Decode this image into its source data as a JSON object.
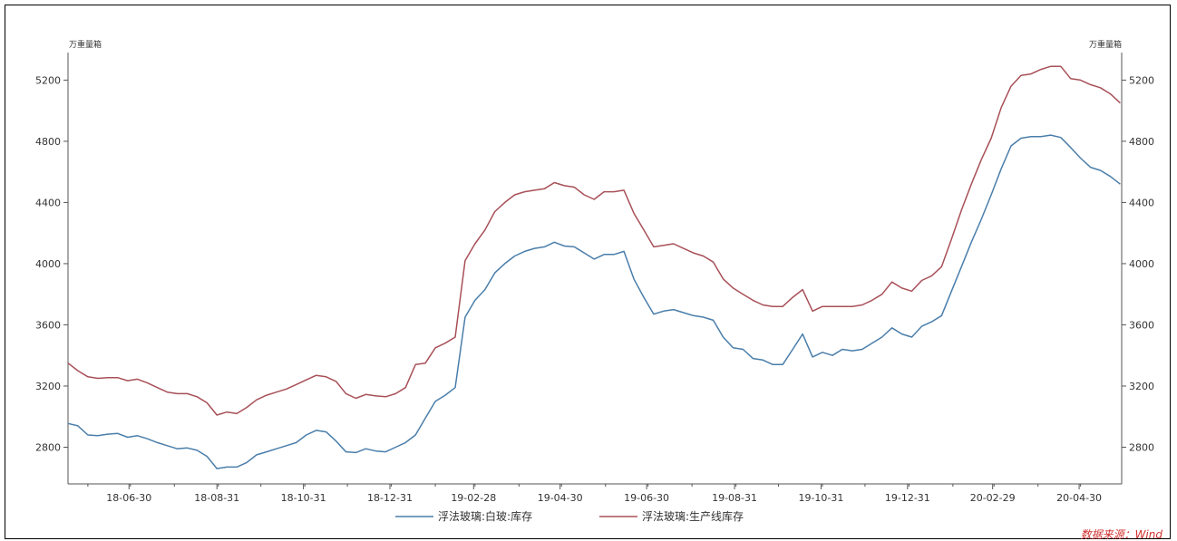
{
  "chart_data": {
    "type": "line",
    "title": "",
    "units": {
      "left": "万重量箱",
      "right": "万重量箱"
    },
    "ylim": [
      2560,
      5380
    ],
    "yticks": [
      2800,
      3200,
      3600,
      4000,
      4400,
      4800,
      5200
    ],
    "xlim": [
      "2018-05-18",
      "2020-05-30"
    ],
    "xticks": [
      {
        "date": "2018-06-30",
        "label": "18-06-30"
      },
      {
        "date": "2018-08-31",
        "label": "18-08-31"
      },
      {
        "date": "2018-10-31",
        "label": "18-10-31"
      },
      {
        "date": "2018-12-31",
        "label": "18-12-31"
      },
      {
        "date": "2019-02-28",
        "label": "19-02-28"
      },
      {
        "date": "2019-04-30",
        "label": "19-04-30"
      },
      {
        "date": "2019-06-30",
        "label": "19-06-30"
      },
      {
        "date": "2019-08-31",
        "label": "19-08-31"
      },
      {
        "date": "2019-10-31",
        "label": "19-10-31"
      },
      {
        "date": "2019-12-31",
        "label": "19-12-31"
      },
      {
        "date": "2020-02-29",
        "label": "20-02-29"
      },
      {
        "date": "2020-04-30",
        "label": "20-04-30"
      }
    ],
    "legend_position": "bottom",
    "grid": false,
    "series": [
      {
        "name": "浮法玻璃:白玻:库存",
        "color": "#4a7eaa",
        "points": [
          [
            "2018-05-18",
            2955
          ],
          [
            "2018-05-25",
            2940
          ],
          [
            "2018-06-01",
            2880
          ],
          [
            "2018-06-08",
            2875
          ],
          [
            "2018-06-15",
            2885
          ],
          [
            "2018-06-22",
            2890
          ],
          [
            "2018-06-29",
            2865
          ],
          [
            "2018-07-06",
            2875
          ],
          [
            "2018-07-13",
            2855
          ],
          [
            "2018-07-20",
            2830
          ],
          [
            "2018-07-27",
            2810
          ],
          [
            "2018-08-03",
            2790
          ],
          [
            "2018-08-10",
            2795
          ],
          [
            "2018-08-17",
            2780
          ],
          [
            "2018-08-24",
            2740
          ],
          [
            "2018-08-31",
            2660
          ],
          [
            "2018-09-07",
            2670
          ],
          [
            "2018-09-14",
            2670
          ],
          [
            "2018-09-21",
            2700
          ],
          [
            "2018-09-28",
            2750
          ],
          [
            "2018-10-05",
            2770
          ],
          [
            "2018-10-12",
            2790
          ],
          [
            "2018-10-19",
            2810
          ],
          [
            "2018-10-26",
            2830
          ],
          [
            "2018-11-02",
            2880
          ],
          [
            "2018-11-09",
            2910
          ],
          [
            "2018-11-16",
            2900
          ],
          [
            "2018-11-23",
            2840
          ],
          [
            "2018-11-30",
            2770
          ],
          [
            "2018-12-07",
            2765
          ],
          [
            "2018-12-14",
            2790
          ],
          [
            "2018-12-21",
            2775
          ],
          [
            "2018-12-28",
            2770
          ],
          [
            "2019-01-04",
            2800
          ],
          [
            "2019-01-11",
            2830
          ],
          [
            "2019-01-18",
            2880
          ],
          [
            "2019-01-25",
            2990
          ],
          [
            "2019-02-01",
            3100
          ],
          [
            "2019-02-08",
            3140
          ],
          [
            "2019-02-15",
            3190
          ],
          [
            "2019-02-22",
            3650
          ],
          [
            "2019-03-01",
            3760
          ],
          [
            "2019-03-08",
            3830
          ],
          [
            "2019-03-15",
            3940
          ],
          [
            "2019-03-22",
            4000
          ],
          [
            "2019-03-29",
            4050
          ],
          [
            "2019-04-05",
            4080
          ],
          [
            "2019-04-12",
            4100
          ],
          [
            "2019-04-19",
            4110
          ],
          [
            "2019-04-26",
            4140
          ],
          [
            "2019-05-03",
            4115
          ],
          [
            "2019-05-10",
            4110
          ],
          [
            "2019-05-17",
            4070
          ],
          [
            "2019-05-24",
            4030
          ],
          [
            "2019-05-31",
            4060
          ],
          [
            "2019-06-07",
            4060
          ],
          [
            "2019-06-14",
            4080
          ],
          [
            "2019-06-21",
            3900
          ],
          [
            "2019-06-28",
            3780
          ],
          [
            "2019-07-05",
            3670
          ],
          [
            "2019-07-12",
            3690
          ],
          [
            "2019-07-19",
            3700
          ],
          [
            "2019-07-26",
            3680
          ],
          [
            "2019-08-02",
            3660
          ],
          [
            "2019-08-09",
            3650
          ],
          [
            "2019-08-16",
            3630
          ],
          [
            "2019-08-23",
            3520
          ],
          [
            "2019-08-30",
            3450
          ],
          [
            "2019-09-06",
            3440
          ],
          [
            "2019-09-13",
            3380
          ],
          [
            "2019-09-20",
            3370
          ],
          [
            "2019-09-27",
            3340
          ],
          [
            "2019-10-04",
            3340
          ],
          [
            "2019-10-11",
            3440
          ],
          [
            "2019-10-18",
            3540
          ],
          [
            "2019-10-25",
            3390
          ],
          [
            "2019-11-01",
            3420
          ],
          [
            "2019-11-08",
            3400
          ],
          [
            "2019-11-15",
            3440
          ],
          [
            "2019-11-22",
            3430
          ],
          [
            "2019-11-29",
            3440
          ],
          [
            "2019-12-06",
            3480
          ],
          [
            "2019-12-13",
            3520
          ],
          [
            "2019-12-20",
            3580
          ],
          [
            "2019-12-27",
            3540
          ],
          [
            "2020-01-03",
            3520
          ],
          [
            "2020-01-10",
            3590
          ],
          [
            "2020-01-17",
            3620
          ],
          [
            "2020-01-24",
            3660
          ],
          [
            "2020-01-31",
            3820
          ],
          [
            "2020-02-07",
            3980
          ],
          [
            "2020-02-14",
            4140
          ],
          [
            "2020-02-21",
            4290
          ],
          [
            "2020-02-28",
            4450
          ],
          [
            "2020-03-06",
            4620
          ],
          [
            "2020-03-13",
            4770
          ],
          [
            "2020-03-20",
            4820
          ],
          [
            "2020-03-27",
            4830
          ],
          [
            "2020-04-03",
            4830
          ],
          [
            "2020-04-10",
            4840
          ],
          [
            "2020-04-17",
            4825
          ],
          [
            "2020-04-24",
            4760
          ],
          [
            "2020-05-01",
            4690
          ],
          [
            "2020-05-08",
            4630
          ],
          [
            "2020-05-15",
            4610
          ],
          [
            "2020-05-22",
            4570
          ],
          [
            "2020-05-29",
            4520
          ]
        ]
      },
      {
        "name": "浮法玻璃:生产线库存",
        "color": "#a85058",
        "points": [
          [
            "2018-05-18",
            3350
          ],
          [
            "2018-05-25",
            3300
          ],
          [
            "2018-06-01",
            3260
          ],
          [
            "2018-06-08",
            3250
          ],
          [
            "2018-06-15",
            3255
          ],
          [
            "2018-06-22",
            3255
          ],
          [
            "2018-06-29",
            3235
          ],
          [
            "2018-07-06",
            3245
          ],
          [
            "2018-07-13",
            3220
          ],
          [
            "2018-07-20",
            3190
          ],
          [
            "2018-07-27",
            3160
          ],
          [
            "2018-08-03",
            3150
          ],
          [
            "2018-08-10",
            3150
          ],
          [
            "2018-08-17",
            3130
          ],
          [
            "2018-08-24",
            3090
          ],
          [
            "2018-08-31",
            3010
          ],
          [
            "2018-09-07",
            3030
          ],
          [
            "2018-09-14",
            3020
          ],
          [
            "2018-09-21",
            3060
          ],
          [
            "2018-09-28",
            3110
          ],
          [
            "2018-10-05",
            3140
          ],
          [
            "2018-10-12",
            3160
          ],
          [
            "2018-10-19",
            3180
          ],
          [
            "2018-10-26",
            3210
          ],
          [
            "2018-11-02",
            3240
          ],
          [
            "2018-11-09",
            3270
          ],
          [
            "2018-11-16",
            3260
          ],
          [
            "2018-11-23",
            3230
          ],
          [
            "2018-11-30",
            3150
          ],
          [
            "2018-12-07",
            3120
          ],
          [
            "2018-12-14",
            3145
          ],
          [
            "2018-12-21",
            3135
          ],
          [
            "2018-12-28",
            3130
          ],
          [
            "2019-01-04",
            3150
          ],
          [
            "2019-01-11",
            3190
          ],
          [
            "2019-01-18",
            3340
          ],
          [
            "2019-01-25",
            3350
          ],
          [
            "2019-02-01",
            3450
          ],
          [
            "2019-02-08",
            3480
          ],
          [
            "2019-02-15",
            3520
          ],
          [
            "2019-02-22",
            4020
          ],
          [
            "2019-03-01",
            4130
          ],
          [
            "2019-03-08",
            4220
          ],
          [
            "2019-03-15",
            4340
          ],
          [
            "2019-03-22",
            4400
          ],
          [
            "2019-03-29",
            4450
          ],
          [
            "2019-04-05",
            4470
          ],
          [
            "2019-04-12",
            4480
          ],
          [
            "2019-04-19",
            4490
          ],
          [
            "2019-04-26",
            4530
          ],
          [
            "2019-05-03",
            4510
          ],
          [
            "2019-05-10",
            4500
          ],
          [
            "2019-05-17",
            4450
          ],
          [
            "2019-05-24",
            4420
          ],
          [
            "2019-05-31",
            4470
          ],
          [
            "2019-06-07",
            4470
          ],
          [
            "2019-06-14",
            4480
          ],
          [
            "2019-06-21",
            4330
          ],
          [
            "2019-06-28",
            4220
          ],
          [
            "2019-07-05",
            4110
          ],
          [
            "2019-07-12",
            4120
          ],
          [
            "2019-07-19",
            4130
          ],
          [
            "2019-07-26",
            4100
          ],
          [
            "2019-08-02",
            4070
          ],
          [
            "2019-08-09",
            4050
          ],
          [
            "2019-08-16",
            4010
          ],
          [
            "2019-08-23",
            3900
          ],
          [
            "2019-08-30",
            3840
          ],
          [
            "2019-09-06",
            3800
          ],
          [
            "2019-09-13",
            3760
          ],
          [
            "2019-09-20",
            3730
          ],
          [
            "2019-09-27",
            3720
          ],
          [
            "2019-10-04",
            3720
          ],
          [
            "2019-10-11",
            3780
          ],
          [
            "2019-10-18",
            3830
          ],
          [
            "2019-10-25",
            3690
          ],
          [
            "2019-11-01",
            3720
          ],
          [
            "2019-11-08",
            3720
          ],
          [
            "2019-11-15",
            3720
          ],
          [
            "2019-11-22",
            3720
          ],
          [
            "2019-11-29",
            3730
          ],
          [
            "2019-12-06",
            3760
          ],
          [
            "2019-12-13",
            3800
          ],
          [
            "2019-12-20",
            3880
          ],
          [
            "2019-12-27",
            3840
          ],
          [
            "2020-01-03",
            3820
          ],
          [
            "2020-01-10",
            3890
          ],
          [
            "2020-01-17",
            3920
          ],
          [
            "2020-01-24",
            3980
          ],
          [
            "2020-01-31",
            4160
          ],
          [
            "2020-02-07",
            4350
          ],
          [
            "2020-02-14",
            4520
          ],
          [
            "2020-02-21",
            4680
          ],
          [
            "2020-02-28",
            4820
          ],
          [
            "2020-03-06",
            5020
          ],
          [
            "2020-03-13",
            5160
          ],
          [
            "2020-03-20",
            5230
          ],
          [
            "2020-03-27",
            5240
          ],
          [
            "2020-04-03",
            5270
          ],
          [
            "2020-04-10",
            5290
          ],
          [
            "2020-04-17",
            5290
          ],
          [
            "2020-04-24",
            5210
          ],
          [
            "2020-05-01",
            5200
          ],
          [
            "2020-05-08",
            5170
          ],
          [
            "2020-05-15",
            5150
          ],
          [
            "2020-05-22",
            5110
          ],
          [
            "2020-05-29",
            5050
          ]
        ]
      }
    ],
    "source": "数据来源：Wind"
  }
}
